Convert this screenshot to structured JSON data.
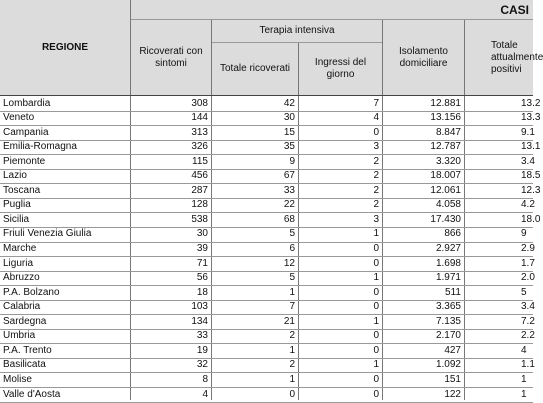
{
  "table": {
    "banner": "CASI",
    "headers": {
      "regione": "REGIONE",
      "ricoverati": "Ricoverati con sintomi",
      "terapia_intensiva": "Terapia intensiva",
      "totale_ricoverati": "Totale ricoverati",
      "ingressi_giorno": "Ingressi del giorno",
      "isolamento": "Isolamento domiciliare",
      "totale_positivi": "Totale attualmente positivi"
    },
    "rows": [
      {
        "regione": "Lombardia",
        "ricoverati": "308",
        "totale_ricoverati": "42",
        "ingressi": "7",
        "isolamento": "12.881",
        "totale": "13.2"
      },
      {
        "regione": "Veneto",
        "ricoverati": "144",
        "totale_ricoverati": "30",
        "ingressi": "4",
        "isolamento": "13.156",
        "totale": "13.3"
      },
      {
        "regione": "Campania",
        "ricoverati": "313",
        "totale_ricoverati": "15",
        "ingressi": "0",
        "isolamento": "8.847",
        "totale": "9.1"
      },
      {
        "regione": "Emilia-Romagna",
        "ricoverati": "326",
        "totale_ricoverati": "35",
        "ingressi": "3",
        "isolamento": "12.787",
        "totale": "13.1"
      },
      {
        "regione": "Piemonte",
        "ricoverati": "115",
        "totale_ricoverati": "9",
        "ingressi": "2",
        "isolamento": "3.320",
        "totale": "3.4"
      },
      {
        "regione": "Lazio",
        "ricoverati": "456",
        "totale_ricoverati": "67",
        "ingressi": "2",
        "isolamento": "18.007",
        "totale": "18.5"
      },
      {
        "regione": "Toscana",
        "ricoverati": "287",
        "totale_ricoverati": "33",
        "ingressi": "2",
        "isolamento": "12.061",
        "totale": "12.3"
      },
      {
        "regione": "Puglia",
        "ricoverati": "128",
        "totale_ricoverati": "22",
        "ingressi": "2",
        "isolamento": "4.058",
        "totale": "4.2"
      },
      {
        "regione": "Sicilia",
        "ricoverati": "538",
        "totale_ricoverati": "68",
        "ingressi": "3",
        "isolamento": "17.430",
        "totale": "18.0"
      },
      {
        "regione": "Friuli Venezia Giulia",
        "ricoverati": "30",
        "totale_ricoverati": "5",
        "ingressi": "1",
        "isolamento": "866",
        "totale": "9"
      },
      {
        "regione": "Marche",
        "ricoverati": "39",
        "totale_ricoverati": "6",
        "ingressi": "0",
        "isolamento": "2.927",
        "totale": "2.9"
      },
      {
        "regione": "Liguria",
        "ricoverati": "71",
        "totale_ricoverati": "12",
        "ingressi": "0",
        "isolamento": "1.698",
        "totale": "1.7"
      },
      {
        "regione": "Abruzzo",
        "ricoverati": "56",
        "totale_ricoverati": "5",
        "ingressi": "1",
        "isolamento": "1.971",
        "totale": "2.0"
      },
      {
        "regione": "P.A. Bolzano",
        "ricoverati": "18",
        "totale_ricoverati": "1",
        "ingressi": "0",
        "isolamento": "511",
        "totale": "5"
      },
      {
        "regione": "Calabria",
        "ricoverati": "103",
        "totale_ricoverati": "7",
        "ingressi": "0",
        "isolamento": "3.365",
        "totale": "3.4"
      },
      {
        "regione": "Sardegna",
        "ricoverati": "134",
        "totale_ricoverati": "21",
        "ingressi": "1",
        "isolamento": "7.135",
        "totale": "7.2"
      },
      {
        "regione": "Umbria",
        "ricoverati": "33",
        "totale_ricoverati": "2",
        "ingressi": "0",
        "isolamento": "2.170",
        "totale": "2.2"
      },
      {
        "regione": "P.A. Trento",
        "ricoverati": "19",
        "totale_ricoverati": "1",
        "ingressi": "0",
        "isolamento": "427",
        "totale": "4"
      },
      {
        "regione": "Basilicata",
        "ricoverati": "32",
        "totale_ricoverati": "2",
        "ingressi": "1",
        "isolamento": "1.092",
        "totale": "1.1"
      },
      {
        "regione": "Molise",
        "ricoverati": "8",
        "totale_ricoverati": "1",
        "ingressi": "0",
        "isolamento": "151",
        "totale": "1"
      },
      {
        "regione": "Valle d'Aosta",
        "ricoverati": "4",
        "totale_ricoverati": "0",
        "ingressi": "0",
        "isolamento": "122",
        "totale": "1"
      }
    ]
  }
}
